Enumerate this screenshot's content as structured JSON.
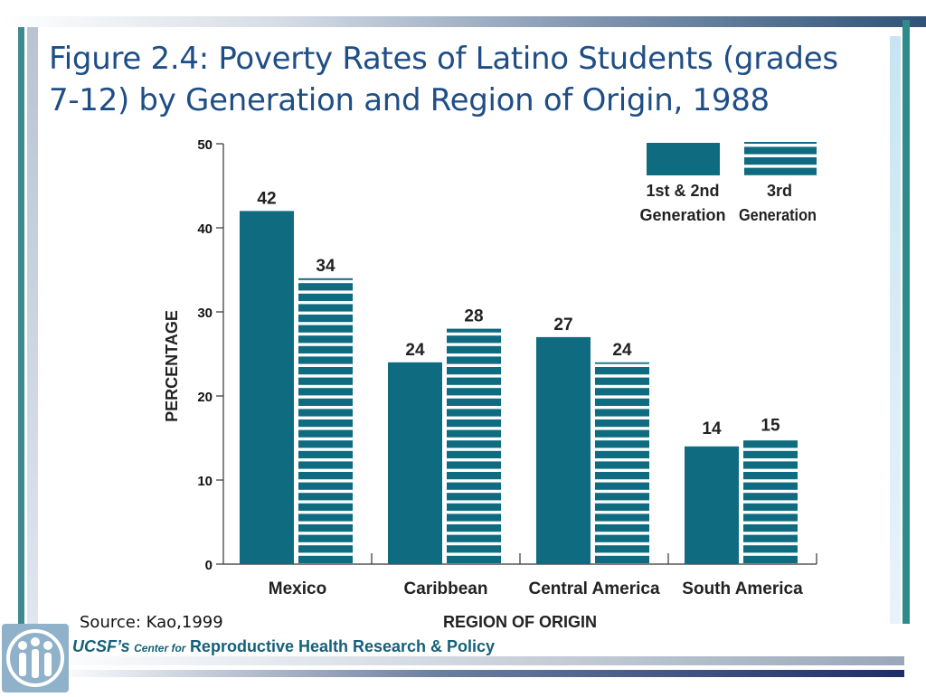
{
  "slide": {
    "title": "Figure 2.4: Poverty Rates of Latino Students (grades 7-12) by Generation and Region of Origin, 1988",
    "source": "Source: Kao,1999",
    "footer": {
      "ucsf": "UCSF’s",
      "center_for": "Center for",
      "rhrp": "Reproductive Health Research & Policy"
    },
    "logo_icon": "people-group-logo-icon",
    "colors": {
      "title": "#1f4e86",
      "bar": "#0f6b80",
      "footer_text": "#14607a",
      "accent_teal": "#3f8a8e",
      "accent_navy": "#1c2e66"
    }
  },
  "chart_data": {
    "type": "bar",
    "categories": [
      "Mexico",
      "Caribbean",
      "Central America",
      "South America"
    ],
    "series": [
      {
        "name": "1st & 2nd Generation",
        "values": [
          42,
          24,
          27,
          14
        ],
        "style": "solid"
      },
      {
        "name": "3rd Generation",
        "values": [
          34,
          28,
          24,
          15
        ],
        "style": "striped"
      }
    ],
    "data_labels": [
      [
        "42",
        "24",
        "27",
        "14"
      ],
      [
        "34",
        "28",
        "24",
        "15"
      ]
    ],
    "legend": [
      {
        "line1": "1st & 2nd",
        "line2": "Generation"
      },
      {
        "line1": "3rd",
        "line2": "Generation"
      }
    ],
    "xlabel": "REGION OF ORIGIN",
    "ylabel": "PERCENTAGE",
    "ylim": [
      0,
      50
    ],
    "yticks": [
      "0",
      "10",
      "20",
      "30",
      "40",
      "50"
    ],
    "legend_position": "top-right",
    "grid": false
  }
}
